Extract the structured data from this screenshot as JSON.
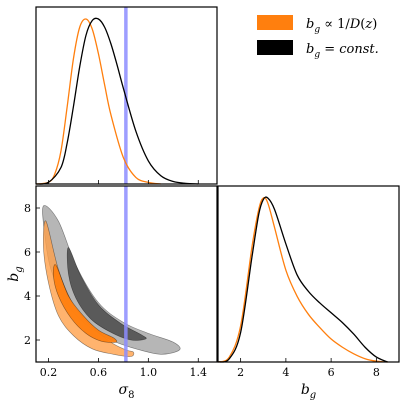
{
  "chart_data": {
    "type": "corner-plot",
    "parameters": [
      {
        "key": "sigma8",
        "label": "σ",
        "sub": "8",
        "range": [
          0.1,
          1.55
        ],
        "ticks": [
          "0.2",
          "0.6",
          "1.0",
          "1.4"
        ]
      },
      {
        "key": "bg",
        "label": "b",
        "sub": "g",
        "range": [
          1.0,
          9.0
        ],
        "ticks": [
          "2",
          "4",
          "6",
          "8"
        ]
      }
    ],
    "reference_line": {
      "parameter": "sigma8",
      "value": 0.82,
      "color": "#8c8cff"
    },
    "legend": {
      "placement": "top-right",
      "entries": [
        {
          "series": "growth",
          "label": "b_g ∝ 1/D(z)",
          "color": "#ff7f0e"
        },
        {
          "series": "const",
          "label": "b_g = const.",
          "color": "#000000"
        }
      ]
    },
    "series": [
      {
        "name": "b_g ∝ 1/D(z)",
        "key": "growth",
        "color": "#ff7f0e",
        "sigma8_density": {
          "x": [
            0.1,
            0.2,
            0.25,
            0.3,
            0.35,
            0.4,
            0.45,
            0.5,
            0.55,
            0.6,
            0.65,
            0.7,
            0.8,
            0.9,
            1.0,
            1.1
          ],
          "y": [
            0.0,
            0.01,
            0.06,
            0.2,
            0.47,
            0.76,
            0.95,
            1.0,
            0.94,
            0.79,
            0.6,
            0.42,
            0.16,
            0.04,
            0.01,
            0.0
          ]
        },
        "bg_density": {
          "x": [
            1.0,
            1.5,
            2.0,
            2.5,
            2.8,
            3.0,
            3.2,
            3.5,
            4.0,
            4.5,
            5.0,
            5.5,
            6.0,
            6.5,
            7.0,
            7.5,
            8.0,
            8.5
          ],
          "y": [
            0.0,
            0.03,
            0.22,
            0.7,
            0.93,
            1.0,
            0.97,
            0.82,
            0.56,
            0.4,
            0.29,
            0.21,
            0.14,
            0.09,
            0.05,
            0.02,
            0.005,
            0.0
          ]
        },
        "contours_2d": [
          {
            "level": "2-sigma",
            "points": [
              [
                0.18,
                7.4
              ],
              [
                0.28,
                5.2
              ],
              [
                0.4,
                3.6
              ],
              [
                0.55,
                2.6
              ],
              [
                0.7,
                1.9
              ],
              [
                0.82,
                1.55
              ],
              [
                0.88,
                1.45
              ],
              [
                0.86,
                1.25
              ],
              [
                0.72,
                1.35
              ],
              [
                0.55,
                1.6
              ],
              [
                0.4,
                2.2
              ],
              [
                0.28,
                3.1
              ],
              [
                0.2,
                4.6
              ],
              [
                0.16,
                6.2
              ]
            ]
          },
          {
            "level": "1-sigma",
            "points": [
              [
                0.26,
                5.4
              ],
              [
                0.36,
                4.0
              ],
              [
                0.48,
                3.1
              ],
              [
                0.6,
                2.45
              ],
              [
                0.72,
                2.1
              ],
              [
                0.74,
                1.9
              ],
              [
                0.62,
                1.95
              ],
              [
                0.5,
                2.3
              ],
              [
                0.38,
                3.0
              ],
              [
                0.28,
                4.0
              ],
              [
                0.24,
                4.9
              ]
            ]
          }
        ]
      },
      {
        "name": "b_g = const.",
        "key": "const",
        "color": "#000000",
        "sigma8_density": {
          "x": [
            0.1,
            0.2,
            0.3,
            0.35,
            0.4,
            0.45,
            0.5,
            0.55,
            0.6,
            0.65,
            0.7,
            0.75,
            0.8,
            0.9,
            1.0,
            1.1,
            1.2,
            1.3,
            1.4
          ],
          "y": [
            0.0,
            0.01,
            0.1,
            0.25,
            0.47,
            0.71,
            0.9,
            0.99,
            1.0,
            0.95,
            0.85,
            0.72,
            0.58,
            0.32,
            0.14,
            0.05,
            0.015,
            0.004,
            0.0
          ]
        },
        "bg_density": {
          "x": [
            1.0,
            1.5,
            2.0,
            2.5,
            2.8,
            3.0,
            3.2,
            3.5,
            4.0,
            4.5,
            5.0,
            5.5,
            6.0,
            6.5,
            7.0,
            7.5,
            8.0,
            8.5
          ],
          "y": [
            0.0,
            0.02,
            0.18,
            0.64,
            0.9,
            0.99,
            1.0,
            0.93,
            0.72,
            0.53,
            0.43,
            0.36,
            0.3,
            0.24,
            0.17,
            0.09,
            0.03,
            0.0
          ]
        },
        "contours_2d": [
          {
            "level": "2-sigma",
            "points": [
              [
                0.16,
                8.1
              ],
              [
                0.28,
                7.4
              ],
              [
                0.42,
                5.4
              ],
              [
                0.6,
                3.7
              ],
              [
                0.8,
                2.8
              ],
              [
                1.0,
                2.3
              ],
              [
                1.2,
                1.9
              ],
              [
                1.25,
                1.55
              ],
              [
                1.1,
                1.35
              ],
              [
                0.9,
                1.6
              ],
              [
                0.7,
                2.0
              ],
              [
                0.5,
                2.7
              ],
              [
                0.34,
                3.7
              ],
              [
                0.22,
                5.2
              ],
              [
                0.17,
                6.8
              ]
            ]
          },
          {
            "level": "1-sigma",
            "points": [
              [
                0.36,
                6.2
              ],
              [
                0.46,
                4.9
              ],
              [
                0.6,
                3.6
              ],
              [
                0.78,
                2.75
              ],
              [
                0.94,
                2.25
              ],
              [
                0.98,
                2.05
              ],
              [
                0.86,
                2.0
              ],
              [
                0.7,
                2.35
              ],
              [
                0.54,
                2.95
              ],
              [
                0.42,
                3.9
              ],
              [
                0.36,
                5.0
              ]
            ]
          }
        ]
      }
    ]
  }
}
